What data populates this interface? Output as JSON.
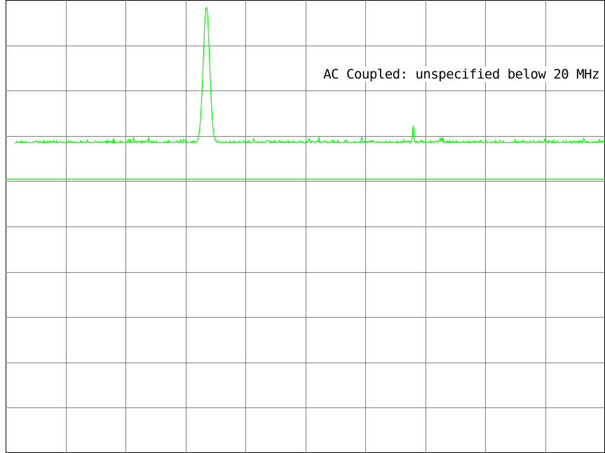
{
  "chart_data": {
    "type": "line",
    "annotation": "AC Coupled: unspecified below 20 MHz",
    "grid": true,
    "grid_divisions": {
      "x": 10,
      "y": 10
    },
    "colors": {
      "background": "#ffffff",
      "grid": "#808080",
      "trace": "#00ff00",
      "reference_line": "#00ff00",
      "text": "#000000"
    },
    "series": [
      {
        "noise_floor_division": 6.85,
        "peaks": [
          {
            "x_division": 3.35,
            "level_division": 9.85
          },
          {
            "x_division": 6.8,
            "level_division": 7.25
          }
        ]
      }
    ],
    "reference_level_division": 6.05
  }
}
